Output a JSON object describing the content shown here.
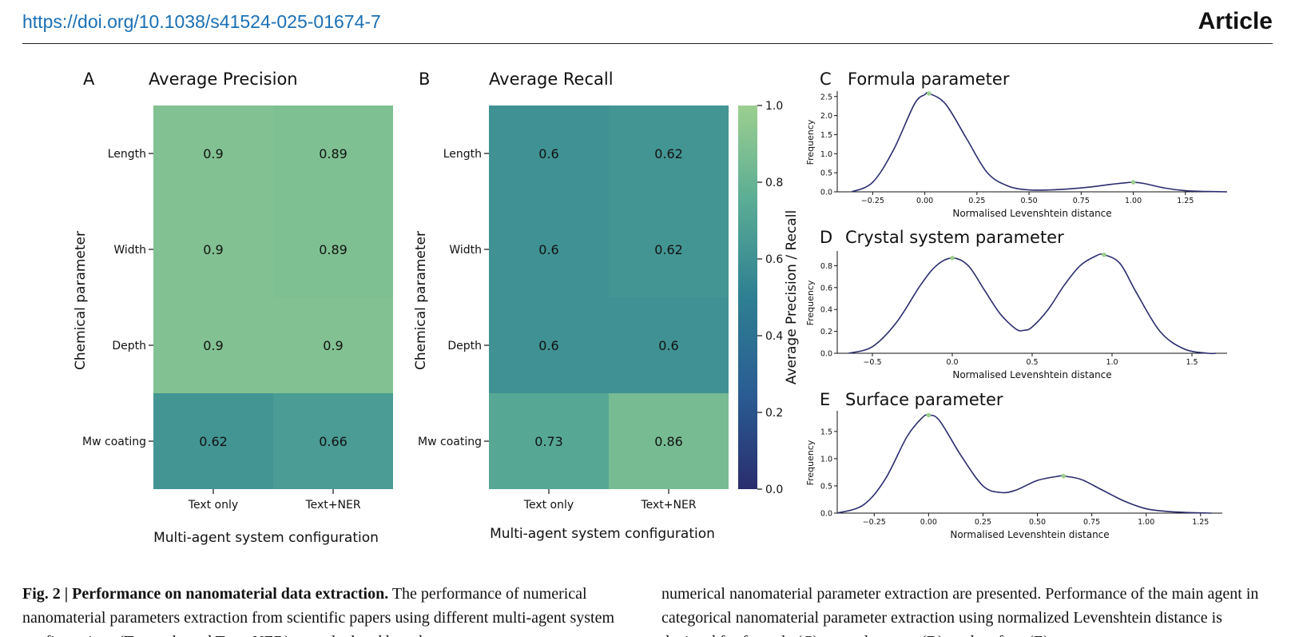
{
  "header": {
    "doi": "https://doi.org/10.1038/s41524-025-01674-7",
    "article_label": "Article"
  },
  "colors": {
    "scale_low": "#2a2d6e",
    "scale_mid": "#2e7f92",
    "scale_high": "#9ccf8f",
    "curve": "#2a2d6e",
    "peak_marker": "#9ccf8f"
  },
  "chart_data": [
    {
      "type": "heatmap",
      "panel": "A",
      "title": "Average Precision",
      "xlabel": "Multi-agent system configuration",
      "ylabel": "Chemical parameter",
      "x_categories": [
        "Text only",
        "Text+NER"
      ],
      "y_categories": [
        "Length",
        "Width",
        "Depth",
        "Mw coating"
      ],
      "values": [
        [
          0.9,
          0.89
        ],
        [
          0.9,
          0.89
        ],
        [
          0.9,
          0.9
        ],
        [
          0.62,
          0.66
        ]
      ],
      "value_labels": [
        [
          "0.9",
          "0.89"
        ],
        [
          "0.9",
          "0.89"
        ],
        [
          "0.9",
          "0.9"
        ],
        [
          "0.62",
          "0.66"
        ]
      ]
    },
    {
      "type": "heatmap",
      "panel": "B",
      "title": "Average Recall",
      "xlabel": "Multi-agent system configuration",
      "ylabel": "Chemical parameter",
      "x_categories": [
        "Text only",
        "Text+NER"
      ],
      "y_categories": [
        "Length",
        "Width",
        "Depth",
        "Mw coating"
      ],
      "values": [
        [
          0.6,
          0.62
        ],
        [
          0.6,
          0.62
        ],
        [
          0.6,
          0.6
        ],
        [
          0.73,
          0.86
        ]
      ],
      "value_labels": [
        [
          "0.6",
          "0.62"
        ],
        [
          "0.6",
          "0.62"
        ],
        [
          "0.6",
          "0.6"
        ],
        [
          "0.73",
          "0.86"
        ]
      ],
      "colorbar": {
        "label": "Average Precision / Recall",
        "range": [
          0.0,
          1.0
        ],
        "ticks": [
          "0.0",
          "0.2",
          "0.4",
          "0.6",
          "0.8",
          "1.0"
        ]
      }
    },
    {
      "type": "line",
      "panel": "C",
      "title": "Formula parameter",
      "xlabel": "Normalised Levenshtein distance",
      "ylabel": "Frequency",
      "xlim": [
        -0.42,
        1.45
      ],
      "ylim": [
        0,
        2.6
      ],
      "x_ticks": [
        "−0.25",
        "0.00",
        "0.25",
        "0.50",
        "0.75",
        "1.00",
        "1.25"
      ],
      "y_ticks": [
        "0.0",
        "0.5",
        "1.0",
        "1.5",
        "2.0",
        "2.5"
      ],
      "x": [
        -0.35,
        -0.25,
        -0.15,
        -0.05,
        0.0,
        0.02,
        0.1,
        0.2,
        0.3,
        0.4,
        0.5,
        0.6,
        0.7,
        0.8,
        0.9,
        0.97,
        1.0,
        1.05,
        1.15,
        1.25,
        1.35,
        1.45
      ],
      "y": [
        0.0,
        0.25,
        1.1,
        2.3,
        2.55,
        2.58,
        2.3,
        1.4,
        0.5,
        0.15,
        0.05,
        0.05,
        0.08,
        0.13,
        0.2,
        0.24,
        0.25,
        0.22,
        0.1,
        0.03,
        0.01,
        0.0
      ],
      "peaks": [
        {
          "x": 0.02,
          "y": 2.58
        },
        {
          "x": 1.0,
          "y": 0.25
        }
      ]
    },
    {
      "type": "line",
      "panel": "D",
      "title": "Crystal system  parameter",
      "xlabel": "Normalised Levenshtein distance",
      "ylabel": "Frequency",
      "xlim": [
        -0.72,
        1.72
      ],
      "ylim": [
        0,
        0.92
      ],
      "x_ticks": [
        "−0.5",
        "0.0",
        "0.5",
        "1.0",
        "1.5"
      ],
      "y_ticks": [
        "0.0",
        "0.2",
        "0.4",
        "0.6",
        "0.8"
      ],
      "x": [
        -0.65,
        -0.5,
        -0.35,
        -0.2,
        -0.1,
        0.0,
        0.1,
        0.2,
        0.3,
        0.4,
        0.45,
        0.5,
        0.6,
        0.7,
        0.8,
        0.9,
        0.95,
        1.05,
        1.15,
        1.3,
        1.45,
        1.6,
        1.65
      ],
      "y": [
        0.0,
        0.06,
        0.28,
        0.62,
        0.8,
        0.87,
        0.8,
        0.58,
        0.36,
        0.22,
        0.21,
        0.24,
        0.4,
        0.62,
        0.8,
        0.89,
        0.9,
        0.82,
        0.56,
        0.2,
        0.04,
        0.0,
        0.0
      ],
      "peaks": [
        {
          "x": 0.0,
          "y": 0.87
        },
        {
          "x": 0.95,
          "y": 0.9
        }
      ]
    },
    {
      "type": "line",
      "panel": "E",
      "title": "Surface parameter",
      "xlabel": "Normalised Levenshtein distance",
      "ylabel": "Frequency",
      "xlim": [
        -0.42,
        1.35
      ],
      "ylim": [
        0,
        1.85
      ],
      "x_ticks": [
        "−0.25",
        "0.00",
        "0.25",
        "0.50",
        "0.75",
        "1.00",
        "1.25"
      ],
      "y_ticks": [
        "0.0",
        "0.5",
        "1.0",
        "1.5"
      ],
      "x": [
        -0.42,
        -0.3,
        -0.2,
        -0.1,
        -0.03,
        0.0,
        0.05,
        0.15,
        0.25,
        0.33,
        0.4,
        0.5,
        0.6,
        0.62,
        0.7,
        0.8,
        0.9,
        1.0,
        1.1,
        1.2,
        1.3
      ],
      "y": [
        0.0,
        0.15,
        0.62,
        1.4,
        1.75,
        1.8,
        1.7,
        1.05,
        0.5,
        0.38,
        0.42,
        0.6,
        0.68,
        0.68,
        0.62,
        0.42,
        0.22,
        0.08,
        0.03,
        0.01,
        0.0
      ],
      "peaks": [
        {
          "x": 0.0,
          "y": 1.8
        },
        {
          "x": 0.62,
          "y": 0.68
        }
      ]
    }
  ],
  "caption": {
    "fig_label": "Fig. 2 | Performance on nanomaterial data extraction.",
    "left_text": " The performance of numerical nanomaterial parameters extraction from scientific papers using different multi-agent system configurations (Text only and Text+NER) are calculated based",
    "right_text": "numerical nanomaterial parameter extraction are presented. Performance of the main agent in categorical nanomaterial parameter extraction using normalized Levenshtein distance is depicted for formula (C), crystal system (D), and surface (E)"
  }
}
